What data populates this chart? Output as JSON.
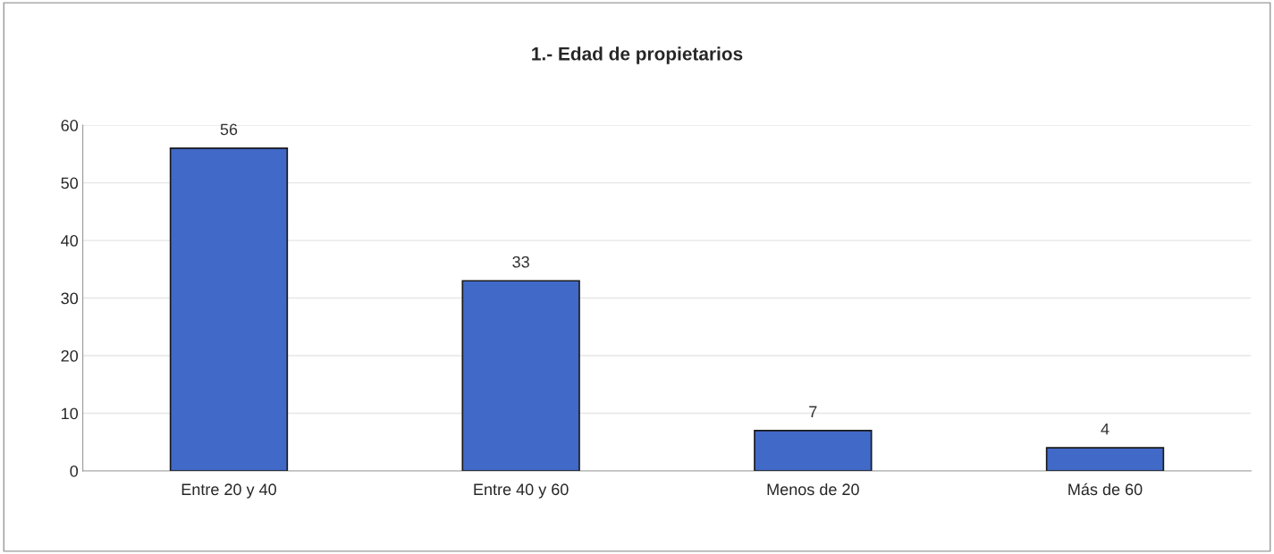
{
  "chart_data": {
    "type": "bar",
    "title": "1.- Edad de propietarios",
    "categories": [
      "Entre 20 y 40",
      "Entre 40 y 60",
      "Menos de 20",
      "Más de 60"
    ],
    "values": [
      56,
      33,
      7,
      4
    ],
    "color": "#4169c8",
    "ylim": [
      0,
      60
    ],
    "yticks": [
      0,
      10,
      20,
      30,
      40,
      50,
      60
    ],
    "grid": "y",
    "data_labels": true
  }
}
